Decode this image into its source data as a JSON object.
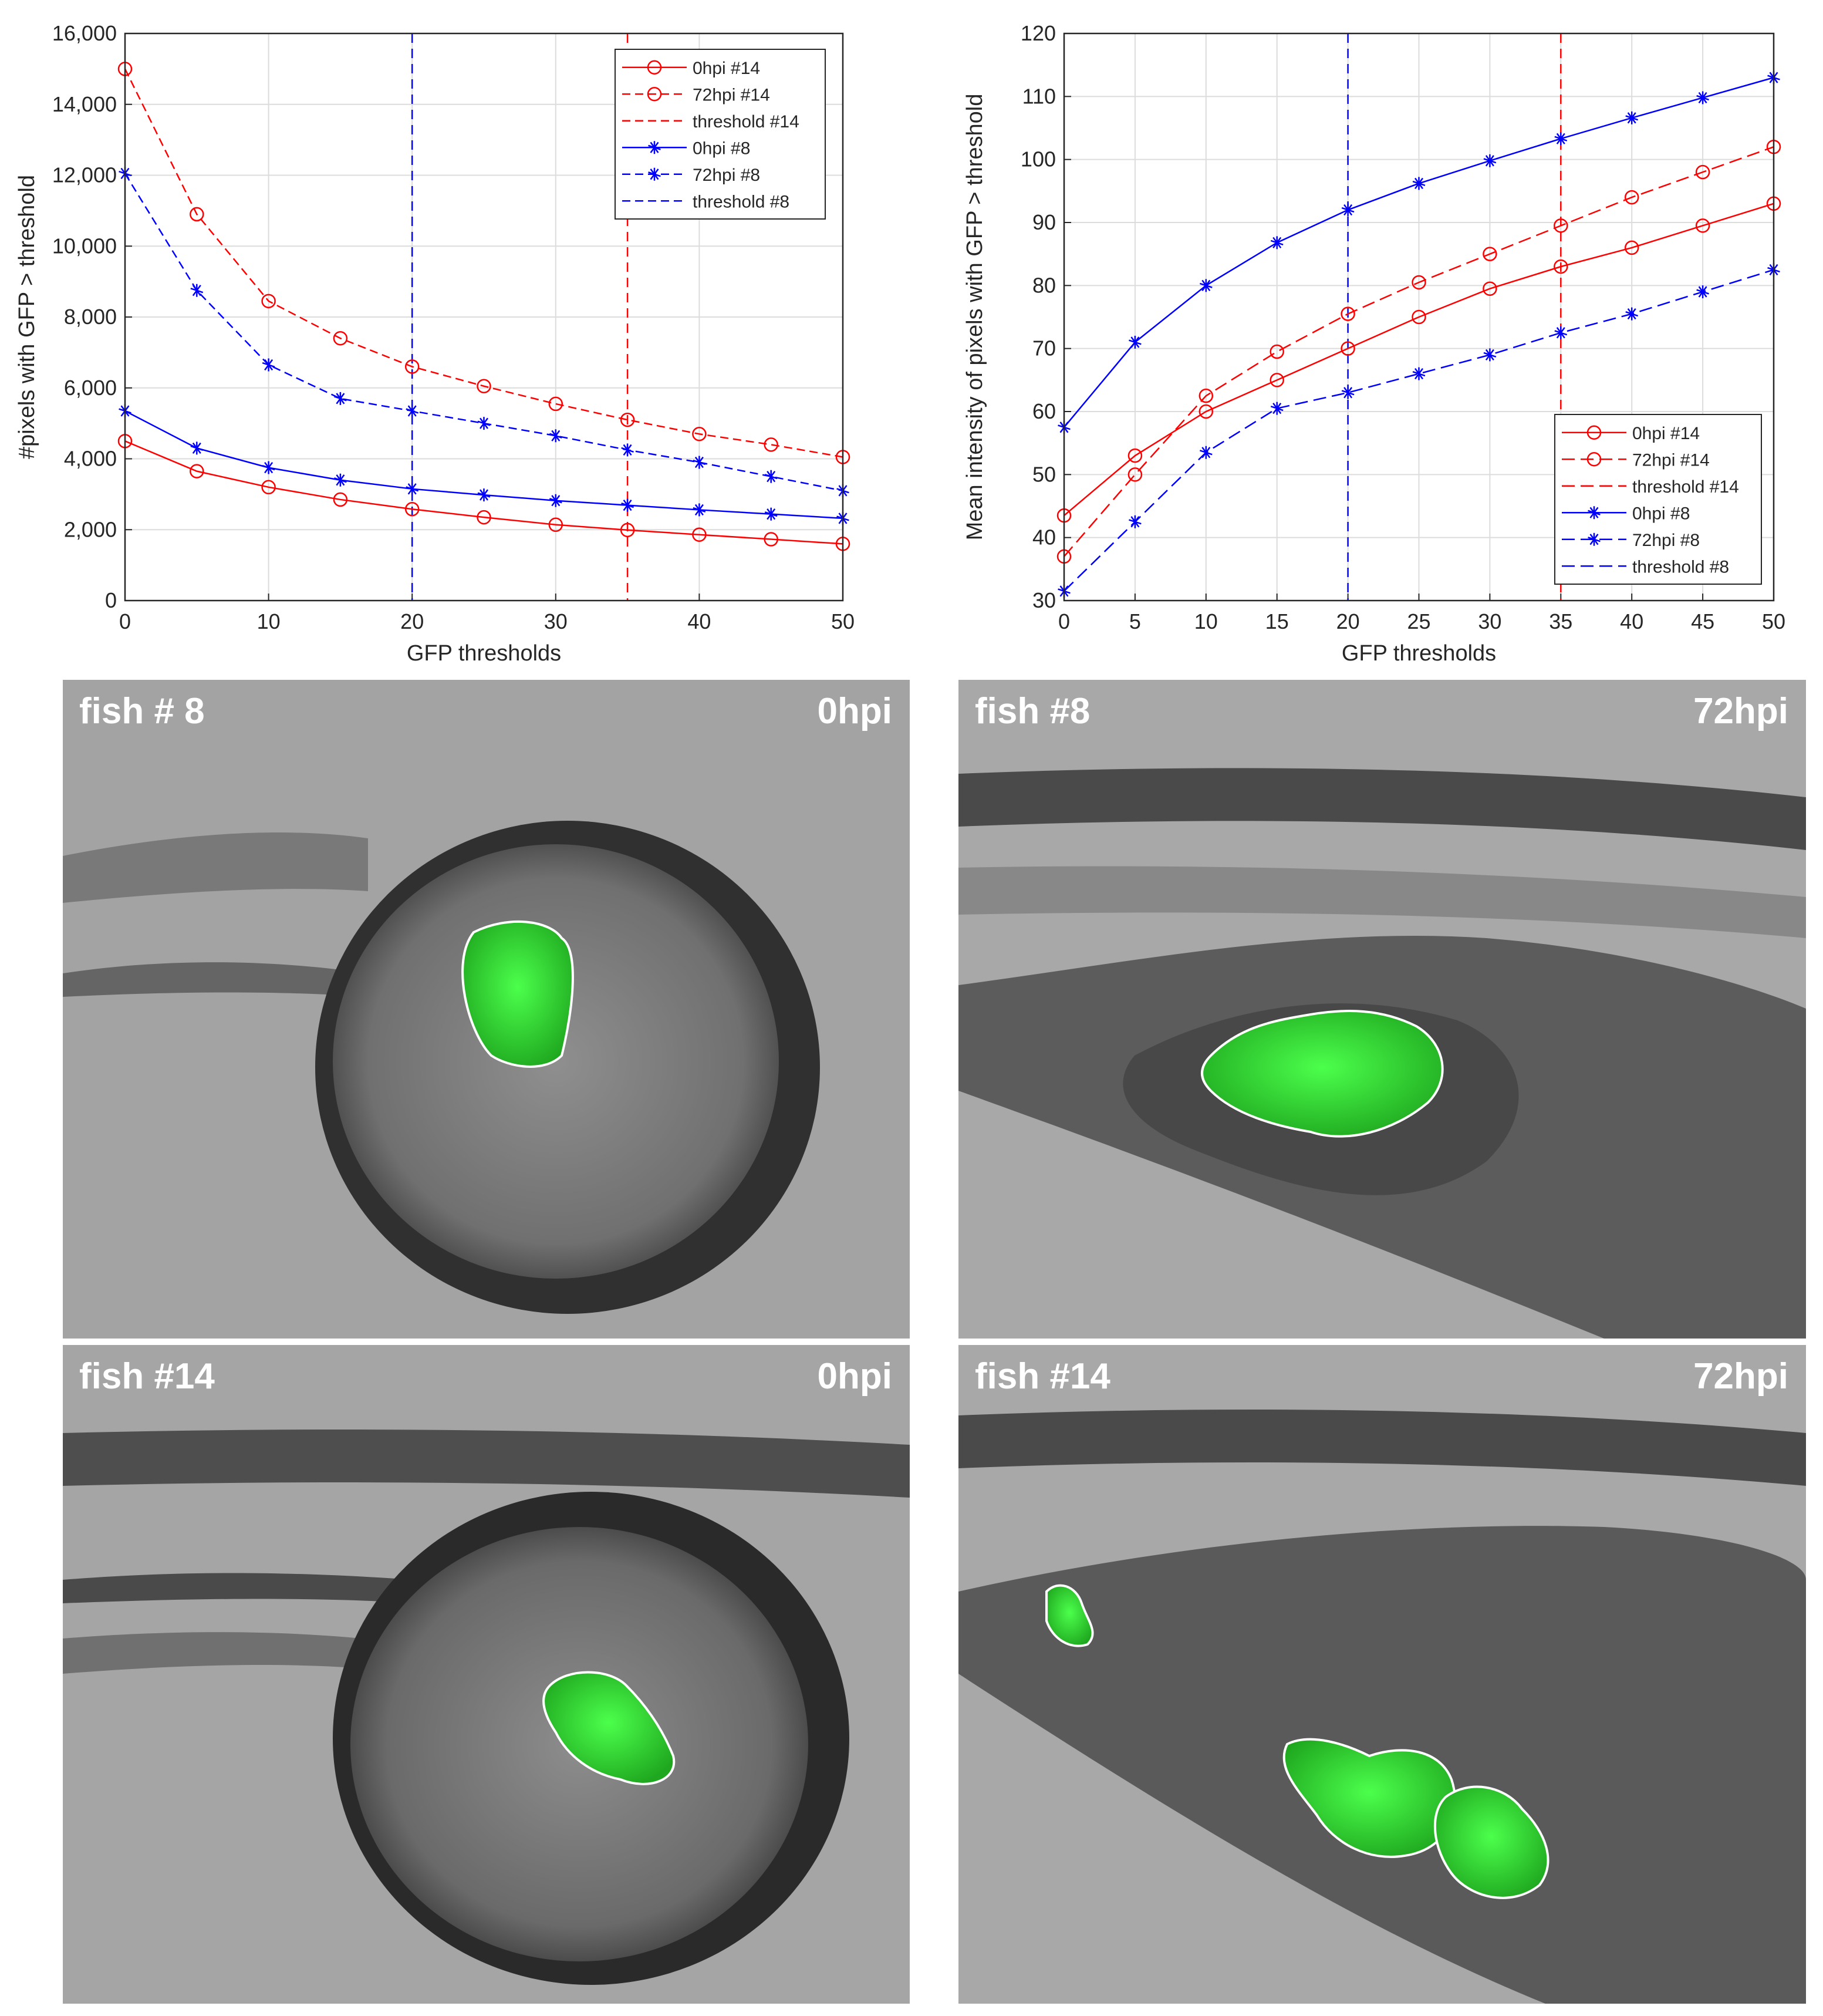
{
  "chart_data": [
    {
      "type": "line",
      "xlabel": "GFP thresholds",
      "ylabel": "#pixels with GFP > threshold",
      "xlim": [
        0,
        50
      ],
      "ylim": [
        0,
        16000
      ],
      "x_ticks": [
        "0",
        "10",
        "20",
        "30",
        "40",
        "50"
      ],
      "y_ticks": [
        "0",
        "2,000",
        "4,000",
        "6,000",
        "8,000",
        "10,000",
        "12,000",
        "14,000",
        "16,000"
      ],
      "grid": true,
      "legend_position": "top-right",
      "x": [
        0,
        5,
        10,
        15,
        20,
        25,
        30,
        35,
        40,
        45,
        50
      ],
      "series": [
        {
          "name": "0hpi #14",
          "color": "#ff0000",
          "style": "solid",
          "marker": "circle",
          "values": [
            4500,
            3650,
            3200,
            2850,
            2580,
            2350,
            2140,
            1990,
            1860,
            1730,
            1600
          ]
        },
        {
          "name": "72hpi #14",
          "color": "#ff0000",
          "style": "dashed",
          "marker": "circle",
          "values": [
            15000,
            10900,
            8450,
            7400,
            6600,
            6050,
            5550,
            5100,
            4700,
            4400,
            4050
          ]
        },
        {
          "name": "0hpi #8",
          "color": "#0000ff",
          "style": "solid",
          "marker": "star",
          "values": [
            5350,
            4300,
            3750,
            3400,
            3150,
            2980,
            2820,
            2690,
            2560,
            2440,
            2320
          ]
        },
        {
          "name": "72hpi #8",
          "color": "#0000ff",
          "style": "dashed",
          "marker": "star",
          "values": [
            12050,
            8750,
            6650,
            5700,
            5350,
            5000,
            4650,
            4250,
            3900,
            3500,
            3100
          ]
        }
      ],
      "thresholds": [
        {
          "name": "threshold #14",
          "color": "#ff0000",
          "x": 35
        },
        {
          "name": "threshold #8",
          "color": "#0000ff",
          "x": 20
        }
      ]
    },
    {
      "type": "line",
      "xlabel": "GFP thresholds",
      "ylabel": "Mean intensity of pixels with GFP > threshold",
      "xlim": [
        0,
        50
      ],
      "ylim": [
        30,
        120
      ],
      "x_ticks": [
        "0",
        "5",
        "10",
        "15",
        "20",
        "25",
        "30",
        "35",
        "40",
        "45",
        "50"
      ],
      "y_ticks": [
        "30",
        "40",
        "50",
        "60",
        "70",
        "80",
        "90",
        "100",
        "110",
        "120"
      ],
      "grid": true,
      "legend_position": "bottom-right",
      "x": [
        0,
        5,
        10,
        15,
        20,
        25,
        30,
        35,
        40,
        45,
        50
      ],
      "series": [
        {
          "name": "0hpi #14",
          "color": "#ff0000",
          "style": "solid",
          "marker": "circle",
          "values": [
            43.5,
            53,
            60,
            65,
            70,
            75,
            79.5,
            83,
            86,
            89.5,
            93
          ]
        },
        {
          "name": "72hpi #14",
          "color": "#ff0000",
          "style": "dashed",
          "marker": "circle",
          "values": [
            37,
            50,
            62.5,
            69.5,
            75.5,
            80.5,
            85,
            89.5,
            94,
            98,
            102
          ]
        },
        {
          "name": "0hpi #8",
          "color": "#0000ff",
          "style": "solid",
          "marker": "star",
          "values": [
            57.5,
            71,
            80,
            86.8,
            92,
            96.2,
            99.8,
            103.3,
            106.6,
            109.8,
            113
          ]
        },
        {
          "name": "72hpi #8",
          "color": "#0000ff",
          "style": "dashed",
          "marker": "star",
          "values": [
            31.5,
            42.5,
            53.5,
            60.5,
            63,
            66,
            69,
            72.5,
            75.5,
            79,
            82.5
          ]
        }
      ],
      "thresholds": [
        {
          "name": "threshold #14",
          "color": "#ff0000",
          "x": 35
        },
        {
          "name": "threshold #8",
          "color": "#0000ff",
          "x": 20
        }
      ]
    }
  ],
  "panels": [
    {
      "fish": "fish # 8",
      "time": "0hpi"
    },
    {
      "fish": "fish #8",
      "time": "72hpi"
    },
    {
      "fish": "fish #14",
      "time": "0hpi"
    },
    {
      "fish": "fish #14",
      "time": "72hpi"
    }
  ],
  "colors": {
    "tumor": "#2bd62b",
    "outline": "#ffffff"
  }
}
